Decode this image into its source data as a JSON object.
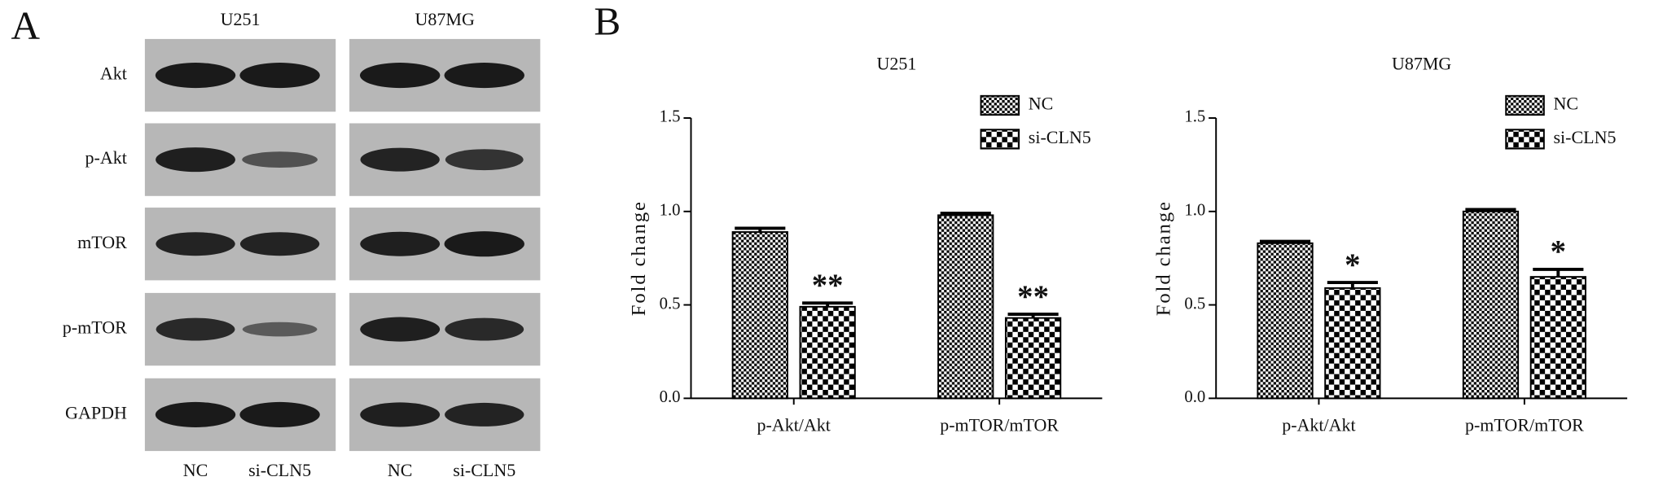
{
  "panels": [
    "A",
    "B"
  ],
  "blot": {
    "cell_lines": [
      "U251",
      "U87MG"
    ],
    "rows": [
      "Akt",
      "p-Akt",
      "mTOR",
      "p-mTOR",
      "GAPDH"
    ],
    "lanes": [
      "NC",
      "si-CLN5",
      "NC",
      "si-CLN5"
    ]
  },
  "chart_data": [
    {
      "type": "bar",
      "title": "U251",
      "ylabel": "Fold change",
      "categories": [
        "p-Akt/Akt",
        "p-mTOR/mTOR"
      ],
      "series": [
        {
          "name": "NC",
          "color": "#000000",
          "values": [
            0.89,
            0.98
          ],
          "errors": [
            0.02,
            0.01
          ]
        },
        {
          "name": "si-CLN5",
          "color": "#000000",
          "values": [
            0.49,
            0.43
          ],
          "errors": [
            0.02,
            0.02
          ],
          "annotations": [
            "**",
            "**"
          ]
        }
      ],
      "ylim": [
        0,
        1.5
      ],
      "yticks": [
        {
          "value": 0,
          "label": "0.0"
        },
        {
          "value": 0.5,
          "label": "0.5"
        },
        {
          "value": 1,
          "label": "1.0"
        },
        {
          "value": 1.5,
          "label": "1.5"
        }
      ]
    },
    {
      "type": "bar",
      "title": "U87MG",
      "ylabel": "Fold change",
      "categories": [
        "p-Akt/Akt",
        "p-mTOR/mTOR"
      ],
      "series": [
        {
          "name": "NC",
          "color": "#000000",
          "values": [
            0.83,
            1.0
          ],
          "errors": [
            0.01,
            0.01
          ]
        },
        {
          "name": "si-CLN5",
          "color": "#000000",
          "values": [
            0.59,
            0.65
          ],
          "errors": [
            0.03,
            0.04
          ],
          "annotations": [
            "*",
            "*"
          ]
        }
      ],
      "ylim": [
        0,
        1.5
      ],
      "yticks": [
        {
          "value": 0,
          "label": "0.0"
        },
        {
          "value": 0.5,
          "label": "0.5"
        },
        {
          "value": 1,
          "label": "1.0"
        },
        {
          "value": 1.5,
          "label": "1.5"
        }
      ]
    }
  ]
}
